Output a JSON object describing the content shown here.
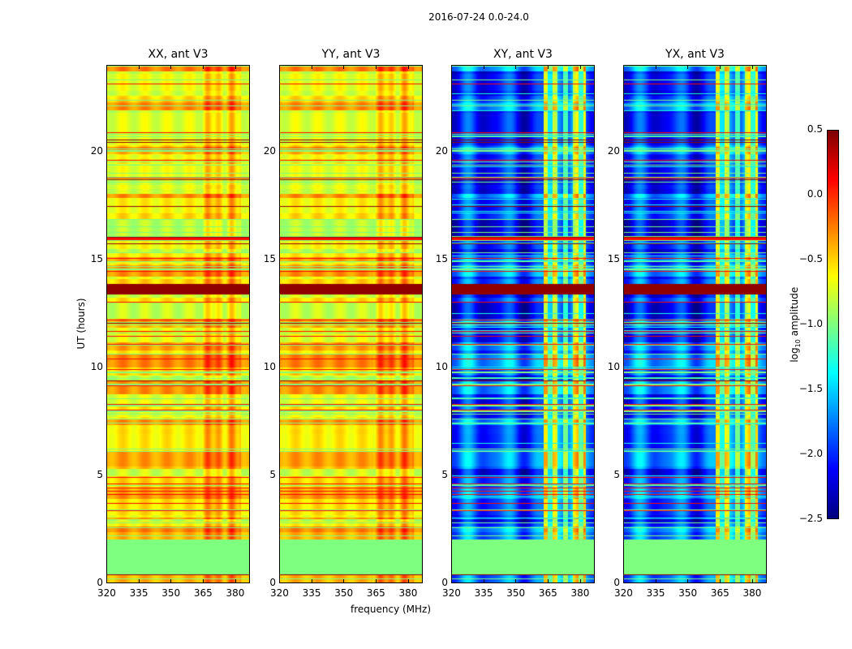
{
  "chart_data": {
    "type": "heatmap",
    "title": "2016-07-24 0.0-24.0",
    "xlabel": "frequency (MHz)",
    "ylabel": "UT (hours)",
    "xlim": [
      320,
      387
    ],
    "ylim": [
      0,
      24
    ],
    "xticks": [
      "320",
      "335",
      "350",
      "365",
      "380"
    ],
    "xtick_values": [
      320,
      335,
      350,
      365,
      380
    ],
    "yticks": [
      "0",
      "5",
      "10",
      "15",
      "20"
    ],
    "ytick_values": [
      0,
      5,
      10,
      15,
      20
    ],
    "panels": [
      {
        "title": "XX, ant V3",
        "base_level": -0.55
      },
      {
        "title": "YY, ant V3",
        "base_level": -0.55
      },
      {
        "title": "XY, ant V3",
        "base_level": -1.9
      },
      {
        "title": "YX, ant V3",
        "base_level": -1.9
      }
    ],
    "flagged_interval_hours": [
      0.4,
      2.0
    ],
    "rfi_band_mhz": [
      363,
      383
    ],
    "colorbar": {
      "label": "log10 amplitude",
      "label_main": "log",
      "label_sub": "10",
      "label_rest": " amplitude",
      "colormap": "jet",
      "range": [
        -2.5,
        0.5
      ],
      "ticks": [
        "0.5",
        "0.0",
        "−0.5",
        "−1.0",
        "−1.5",
        "−2.0",
        "−2.5"
      ],
      "tick_values": [
        0.5,
        0.0,
        -0.5,
        -1.0,
        -1.5,
        -2.0,
        -2.5
      ]
    }
  }
}
